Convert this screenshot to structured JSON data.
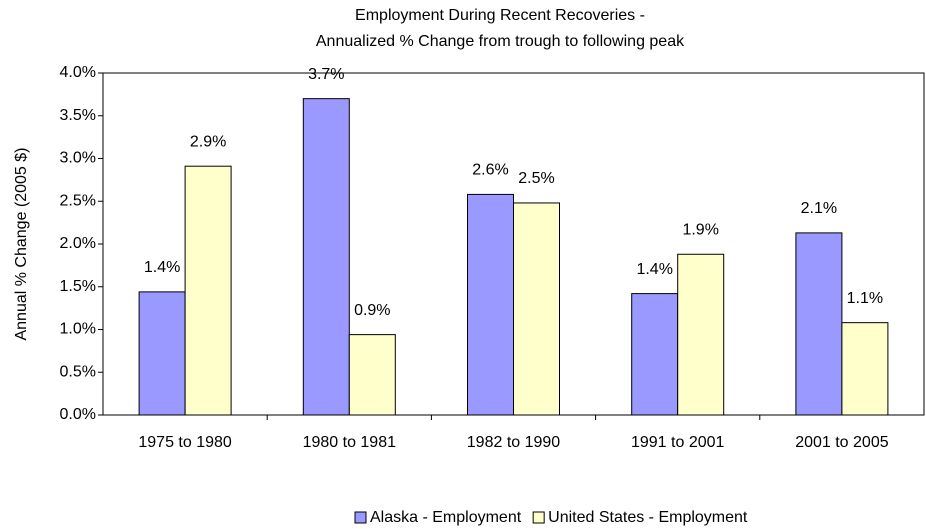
{
  "chart_data": {
    "type": "bar",
    "title": [
      "Employment During Recent Recoveries -",
      "Annualized % Change from trough to following peak"
    ],
    "y_label": "Annual % Change (2005 $)",
    "categories": [
      "1975 to 1980",
      "1980 to 1981",
      "1982 to 1990",
      "1991 to 2001",
      "2001 to 2005"
    ],
    "series": [
      {
        "name": "Alaska - Employment",
        "color": "#9999ff",
        "values": [
          1.44,
          3.7,
          2.58,
          1.42,
          2.13
        ],
        "value_labels": [
          "1.4%",
          "3.7%",
          "2.6%",
          "1.4%",
          "2.1%"
        ]
      },
      {
        "name": "United States - Employment",
        "color": "#ffffcc",
        "values": [
          2.91,
          0.94,
          2.48,
          1.88,
          1.08
        ],
        "value_labels": [
          "2.9%",
          "0.9%",
          "2.5%",
          "1.9%",
          "1.1%"
        ]
      }
    ],
    "ylim": [
      0,
      4
    ],
    "yticks": [
      {
        "value": 0,
        "label": "0.0%"
      },
      {
        "value": 0.5,
        "label": "0.5%"
      },
      {
        "value": 1,
        "label": "1.0%"
      },
      {
        "value": 1.5,
        "label": "1.5%"
      },
      {
        "value": 2,
        "label": "2.0%"
      },
      {
        "value": 2.5,
        "label": "2.5%"
      },
      {
        "value": 3,
        "label": "3.0%"
      },
      {
        "value": 3.5,
        "label": "3.5%"
      },
      {
        "value": 4,
        "label": "4.0%"
      }
    ],
    "grid": false,
    "legend": "bottom"
  }
}
